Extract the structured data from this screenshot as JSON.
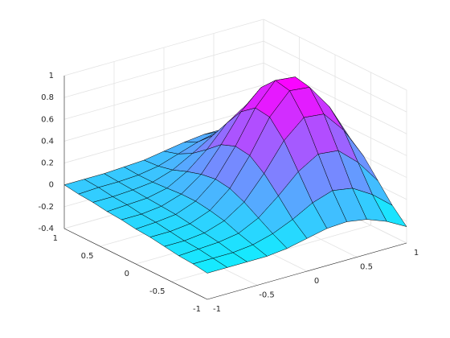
{
  "chart_data": {
    "type": "surface",
    "x": [
      -1,
      -0.8,
      -0.6,
      -0.4,
      -0.2,
      0,
      0.2,
      0.4,
      0.6,
      0.8,
      1
    ],
    "y": [
      -1,
      -0.8,
      -0.6,
      -0.4,
      -0.2,
      0,
      0.2,
      0.4,
      0.6,
      0.8,
      1
    ],
    "z": [
      [
        -0.16,
        -0.16,
        -0.16,
        -0.16,
        -0.14,
        -0.1,
        -0.06,
        -0.05,
        -0.08,
        -0.15,
        -0.25
      ],
      [
        -0.14,
        -0.14,
        -0.14,
        -0.12,
        -0.07,
        0.01,
        0.11,
        0.17,
        0.14,
        0.03,
        -0.12
      ],
      [
        -0.13,
        -0.12,
        -0.11,
        -0.08,
        0.01,
        0.16,
        0.33,
        0.44,
        0.42,
        0.26,
        0.04
      ],
      [
        -0.11,
        -0.11,
        -0.09,
        -0.03,
        0.09,
        0.3,
        0.55,
        0.71,
        0.69,
        0.49,
        0.2
      ],
      [
        -0.09,
        -0.09,
        -0.07,
        0.0,
        0.15,
        0.4,
        0.7,
        0.89,
        0.87,
        0.64,
        0.31
      ],
      [
        -0.08,
        -0.07,
        -0.05,
        0.02,
        0.17,
        0.42,
        0.72,
        0.92,
        0.9,
        0.67,
        0.35
      ],
      [
        -0.06,
        -0.06,
        -0.04,
        0.02,
        0.15,
        0.37,
        0.62,
        0.79,
        0.78,
        0.58,
        0.31
      ],
      [
        -0.05,
        -0.04,
        -0.03,
        0.01,
        0.11,
        0.26,
        0.45,
        0.57,
        0.56,
        0.42,
        0.22
      ],
      [
        -0.03,
        -0.03,
        -0.02,
        0.0,
        0.06,
        0.16,
        0.27,
        0.35,
        0.34,
        0.26,
        0.13
      ],
      [
        -0.02,
        -0.01,
        -0.01,
        0.0,
        0.03,
        0.09,
        0.15,
        0.19,
        0.18,
        0.14,
        0.07
      ],
      [
        0.0,
        0.0,
        0.0,
        0.01,
        0.02,
        0.05,
        0.08,
        0.1,
        0.1,
        0.08,
        0.05
      ]
    ],
    "xlim": [
      -1,
      1
    ],
    "ylim": [
      -1,
      1
    ],
    "zlim": [
      -0.4,
      1
    ],
    "xticks": [
      -1,
      -0.5,
      0,
      0.5,
      1
    ],
    "yticks": [
      -1,
      -0.5,
      0,
      0.5,
      1
    ],
    "zticks": [
      -0.4,
      -0.2,
      0,
      0.2,
      0.4,
      0.6,
      0.8,
      1
    ],
    "colormap": "cool",
    "edge_color": "#000000",
    "grid": true
  }
}
